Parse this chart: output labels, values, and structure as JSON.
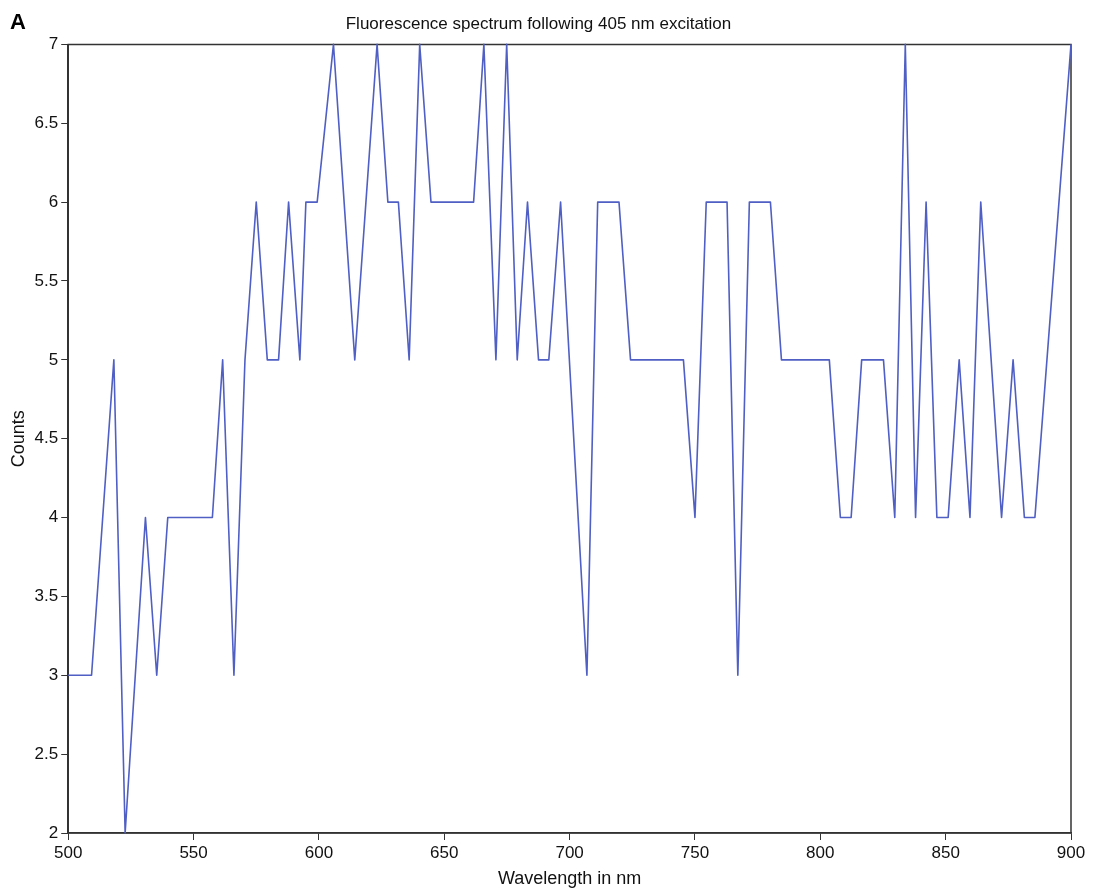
{
  "chart_data": {
    "type": "line",
    "title": "Fluorescence spectrum following 405 nm excitation",
    "xlabel": "Wavelength in nm",
    "ylabel": "Counts",
    "annotations": [
      "A"
    ],
    "series": [
      {
        "color": "#4f5fc4",
        "x": [
          500,
          509.3,
          518.2,
          522.7,
          530.8,
          535.3,
          539.7,
          557.5,
          561.6,
          566.1,
          570.5,
          575.0,
          579.4,
          583.9,
          587.9,
          592.4,
          594.8,
          599.3,
          605.8,
          614.3,
          623.2,
          627.5,
          631.7,
          636.0,
          640.2,
          644.7,
          661.7,
          665.8,
          670.6,
          674.9,
          679.1,
          683.2,
          687.6,
          691.7,
          696.4,
          706.9,
          711.2,
          719.7,
          724.3,
          745.4,
          750.0,
          754.5,
          762.8,
          767.1,
          771.7,
          780.1,
          784.5,
          803.6,
          808.0,
          812.3,
          816.5,
          825.2,
          829.7,
          833.9,
          838.0,
          842.2,
          846.5,
          851.0,
          855.4,
          859.7,
          864.0,
          872.3,
          876.9,
          881.4,
          885.6,
          900
        ],
        "values": [
          3,
          3,
          5,
          2,
          4,
          3,
          4,
          4,
          5,
          3,
          5,
          6,
          5,
          5,
          6,
          5,
          6,
          6,
          7,
          5,
          7,
          6,
          6,
          5,
          7,
          6,
          6,
          7,
          5,
          7,
          5,
          6,
          5,
          5,
          6,
          3,
          6,
          6,
          5,
          5,
          4,
          6,
          6,
          3,
          6,
          6,
          5,
          5,
          4,
          4,
          5,
          5,
          4,
          7,
          4,
          6,
          4,
          4,
          5,
          4,
          6,
          4,
          5,
          4,
          4,
          7
        ]
      }
    ],
    "xlim": [
      500,
      900
    ],
    "xticks": [
      500,
      550,
      600,
      650,
      700,
      750,
      800,
      850,
      900
    ],
    "ylim": [
      2,
      7
    ],
    "yticks": [
      2,
      2.5,
      3,
      3.5,
      4,
      4.5,
      5,
      5.5,
      6,
      6.5,
      7
    ],
    "grid": false,
    "legend": false,
    "marker": "none",
    "line_style": "solid"
  }
}
